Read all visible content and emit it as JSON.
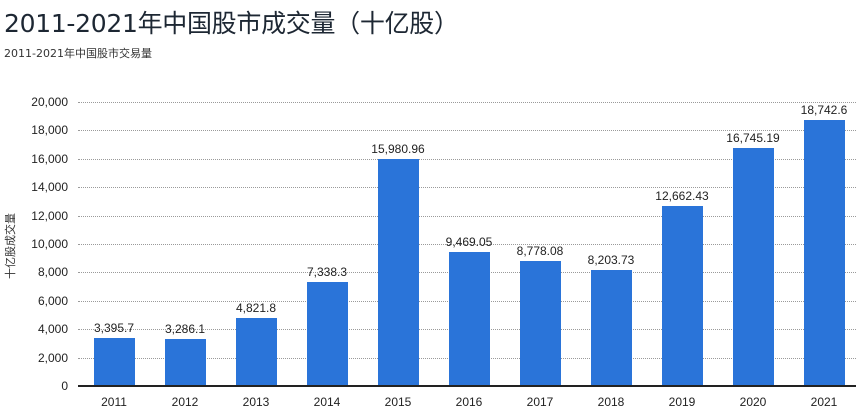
{
  "header": {
    "title": "2011-2021年中国股市成交量（十亿股）",
    "subtitle": "2011-2021年中国股市交易量"
  },
  "chart_data": {
    "type": "bar",
    "title": "2011-2021年中国股市成交量（十亿股）",
    "subtitle": "2011-2021年中国股市交易量",
    "xlabel": "",
    "ylabel": "十亿股成交量",
    "categories": [
      "2011",
      "2012",
      "2013",
      "2014",
      "2015",
      "2016",
      "2017",
      "2018",
      "2019",
      "2020",
      "2021"
    ],
    "values": [
      3395.7,
      3286.1,
      4821.8,
      7338.3,
      15980.96,
      9469.05,
      8778.08,
      8203.73,
      12662.43,
      16745.19,
      18742.6
    ],
    "value_labels": [
      "3,395.7",
      "3,286.1",
      "4,821.8",
      "7,338.3",
      "15,980.96",
      "9,469.05",
      "8,778.08",
      "8,203.73",
      "12,662.43",
      "16,745.19",
      "18,742.6"
    ],
    "ylim": [
      0,
      20000
    ],
    "yticks": [
      "0",
      "2,000",
      "4,000",
      "6,000",
      "8,000",
      "10,000",
      "12,000",
      "14,000",
      "16,000",
      "18,000",
      "20,000"
    ],
    "grid": true,
    "legend": null,
    "bar_color": "#2a74d9"
  }
}
